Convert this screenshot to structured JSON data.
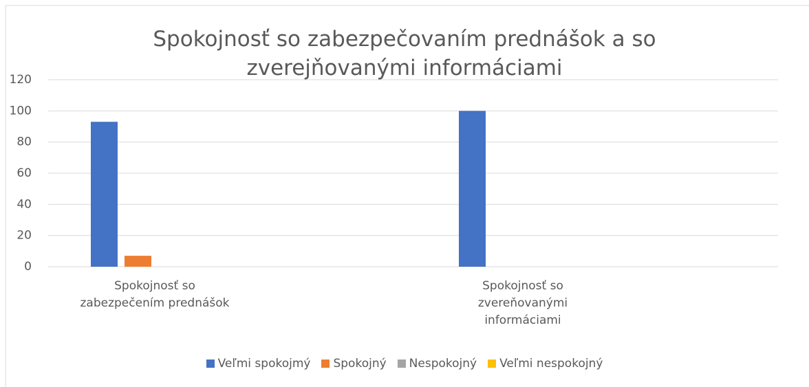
{
  "chart_data": {
    "type": "bar",
    "title": "Spokojnosť so zabezpečovaním prednášok a so zverejňovanými informáciami",
    "categories": [
      "Spokojnosť so zabezpečením prednášok",
      "Spokojnosť so zvereňovanými informáciami"
    ],
    "series": [
      {
        "name": "Veľmi spokojmý",
        "color": "#4472c4",
        "values": [
          93,
          100
        ]
      },
      {
        "name": "Spokojný",
        "color": "#ed7d31",
        "values": [
          7,
          0
        ]
      },
      {
        "name": "Nespokojný",
        "color": "#a5a5a5",
        "values": [
          0,
          0
        ]
      },
      {
        "name": "Veľmi nespokojný",
        "color": "#ffc000",
        "values": [
          0,
          0
        ]
      }
    ],
    "ylim": [
      0,
      120
    ],
    "yticks": [
      0,
      20,
      40,
      60,
      80,
      100,
      120
    ],
    "grid": true,
    "legend": "bottom"
  }
}
